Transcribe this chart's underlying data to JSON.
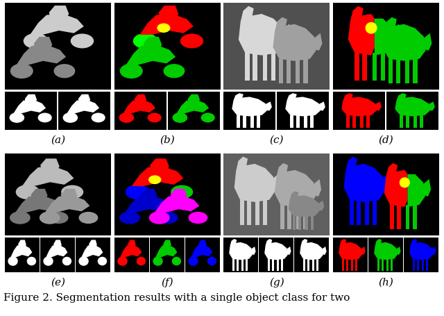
{
  "caption": "Figure 2. Segmentation results with a single object class for two",
  "caption_fontsize": 11,
  "background_color": "#ffffff",
  "panel_labels": [
    "(a)",
    "(b)",
    "(c)",
    "(d)",
    "(e)",
    "(f)",
    "(g)",
    "(h)"
  ],
  "panel_label_fontsize": 11,
  "fig_width": 6.4,
  "fig_height": 4.55,
  "dpi": 100
}
